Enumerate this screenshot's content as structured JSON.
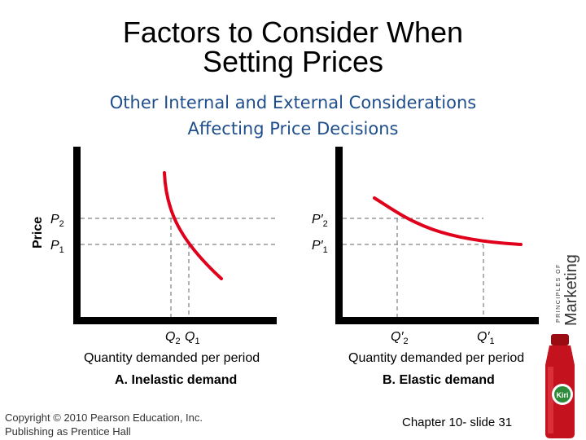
{
  "slide": {
    "title_line1": "Factors to Consider When",
    "title_line2": "Setting Prices",
    "subtitle_line1": "Other Internal and External Considerations",
    "subtitle_line2": "Affecting Price Decisions"
  },
  "panels": [
    {
      "caption": "A. Inelastic demand",
      "xlabel": "Quantity demanded per period",
      "ylabel": "Price",
      "p_high_label": "P",
      "p_high_sub": "2",
      "p_low_label": "P",
      "p_low_sub": "1",
      "q_left_label": "Q",
      "q_left_sub": "2",
      "q_right_label": "Q",
      "q_right_sub": "1"
    },
    {
      "caption": "B. Elastic demand",
      "xlabel": "Quantity demanded per period",
      "p_high_label": "P′",
      "p_high_sub": "2",
      "p_low_label": "P′",
      "p_low_sub": "1",
      "q_left_label": "Q′",
      "q_left_sub": "2",
      "q_right_label": "Q′",
      "q_right_sub": "1"
    }
  ],
  "footer": {
    "copyright_line1": "Copyright © 2010 Pearson Education, Inc.",
    "copyright_line2": "Publishing as Prentice Hall",
    "chapter": "Chapter 10- slide 31"
  },
  "brand": {
    "small_text": "PRINCIPLES OF",
    "large_text": "Marketing",
    "bottle_label": "Kiri"
  },
  "colors": {
    "curve": "#e0001b",
    "axis": "#000000",
    "dashed": "#666666",
    "subtitle": "#1f4e8c"
  }
}
